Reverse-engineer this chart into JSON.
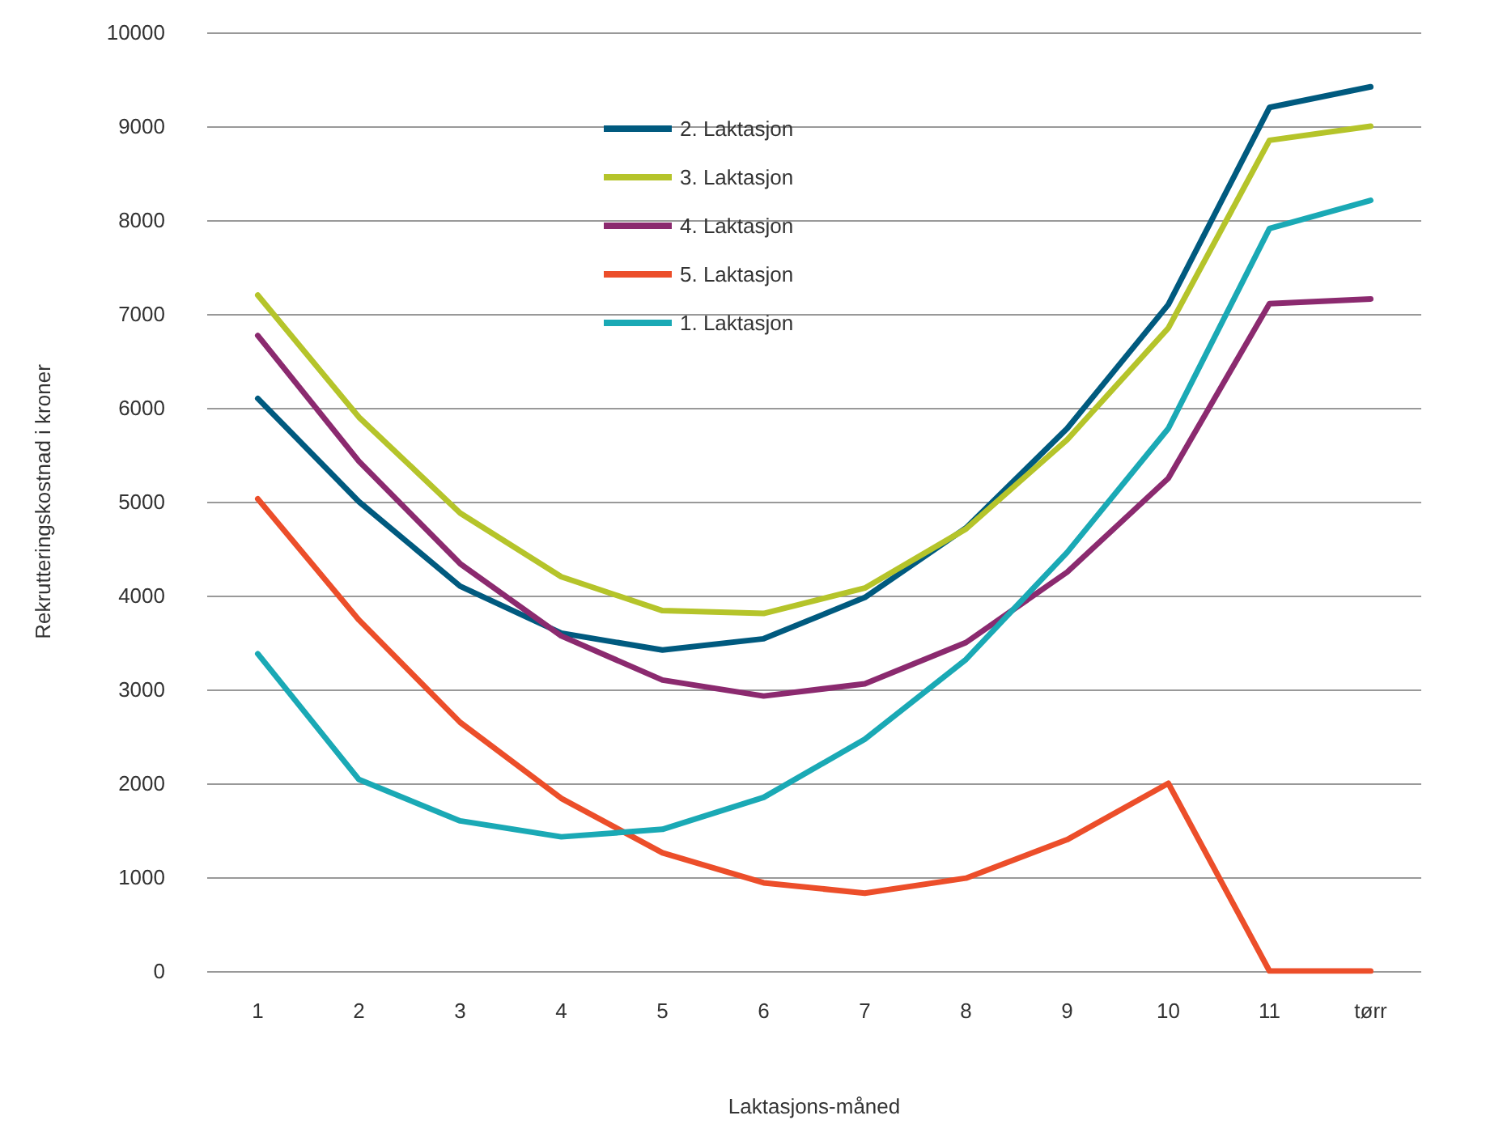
{
  "chart_data": {
    "type": "line",
    "xlabel": "Laktasjons-måned",
    "ylabel": "Rekrutteringskostnad i kroner",
    "categories": [
      "1",
      "2",
      "3",
      "4",
      "5",
      "6",
      "7",
      "8",
      "9",
      "10",
      "11",
      "tørr"
    ],
    "series": [
      {
        "name": "2. Laktasjon",
        "color": "#005a7f",
        "values": [
          6100,
          5000,
          4100,
          3600,
          3420,
          3540,
          3980,
          4720,
          5780,
          7100,
          9200,
          9420
        ]
      },
      {
        "name": "3. Laktasjon",
        "color": "#b5c42a",
        "values": [
          7200,
          5900,
          4880,
          4200,
          3840,
          3810,
          4080,
          4710,
          5660,
          6850,
          8850,
          9000
        ]
      },
      {
        "name": "4. Laktasjon",
        "color": "#8b2a6f",
        "values": [
          6770,
          5430,
          4340,
          3570,
          3100,
          2930,
          3060,
          3500,
          4250,
          5250,
          7110,
          7160
        ]
      },
      {
        "name": "5. Laktasjon",
        "color": "#ec4e2a",
        "values": [
          5030,
          3740,
          2650,
          1840,
          1260,
          940,
          830,
          990,
          1400,
          2000,
          0,
          0
        ]
      },
      {
        "name": "1. Laktasjon",
        "color": "#1aa9b5",
        "values": [
          3380,
          2040,
          1600,
          1430,
          1510,
          1850,
          2470,
          3320,
          4460,
          5780,
          7910,
          8210
        ]
      }
    ],
    "ylim": [
      0,
      10000
    ],
    "yticks": [
      0,
      1000,
      2000,
      3000,
      4000,
      5000,
      6000,
      7000,
      8000,
      9000,
      10000
    ],
    "grid": "y",
    "legend": "top",
    "marker": "none",
    "line_style": "solid"
  }
}
